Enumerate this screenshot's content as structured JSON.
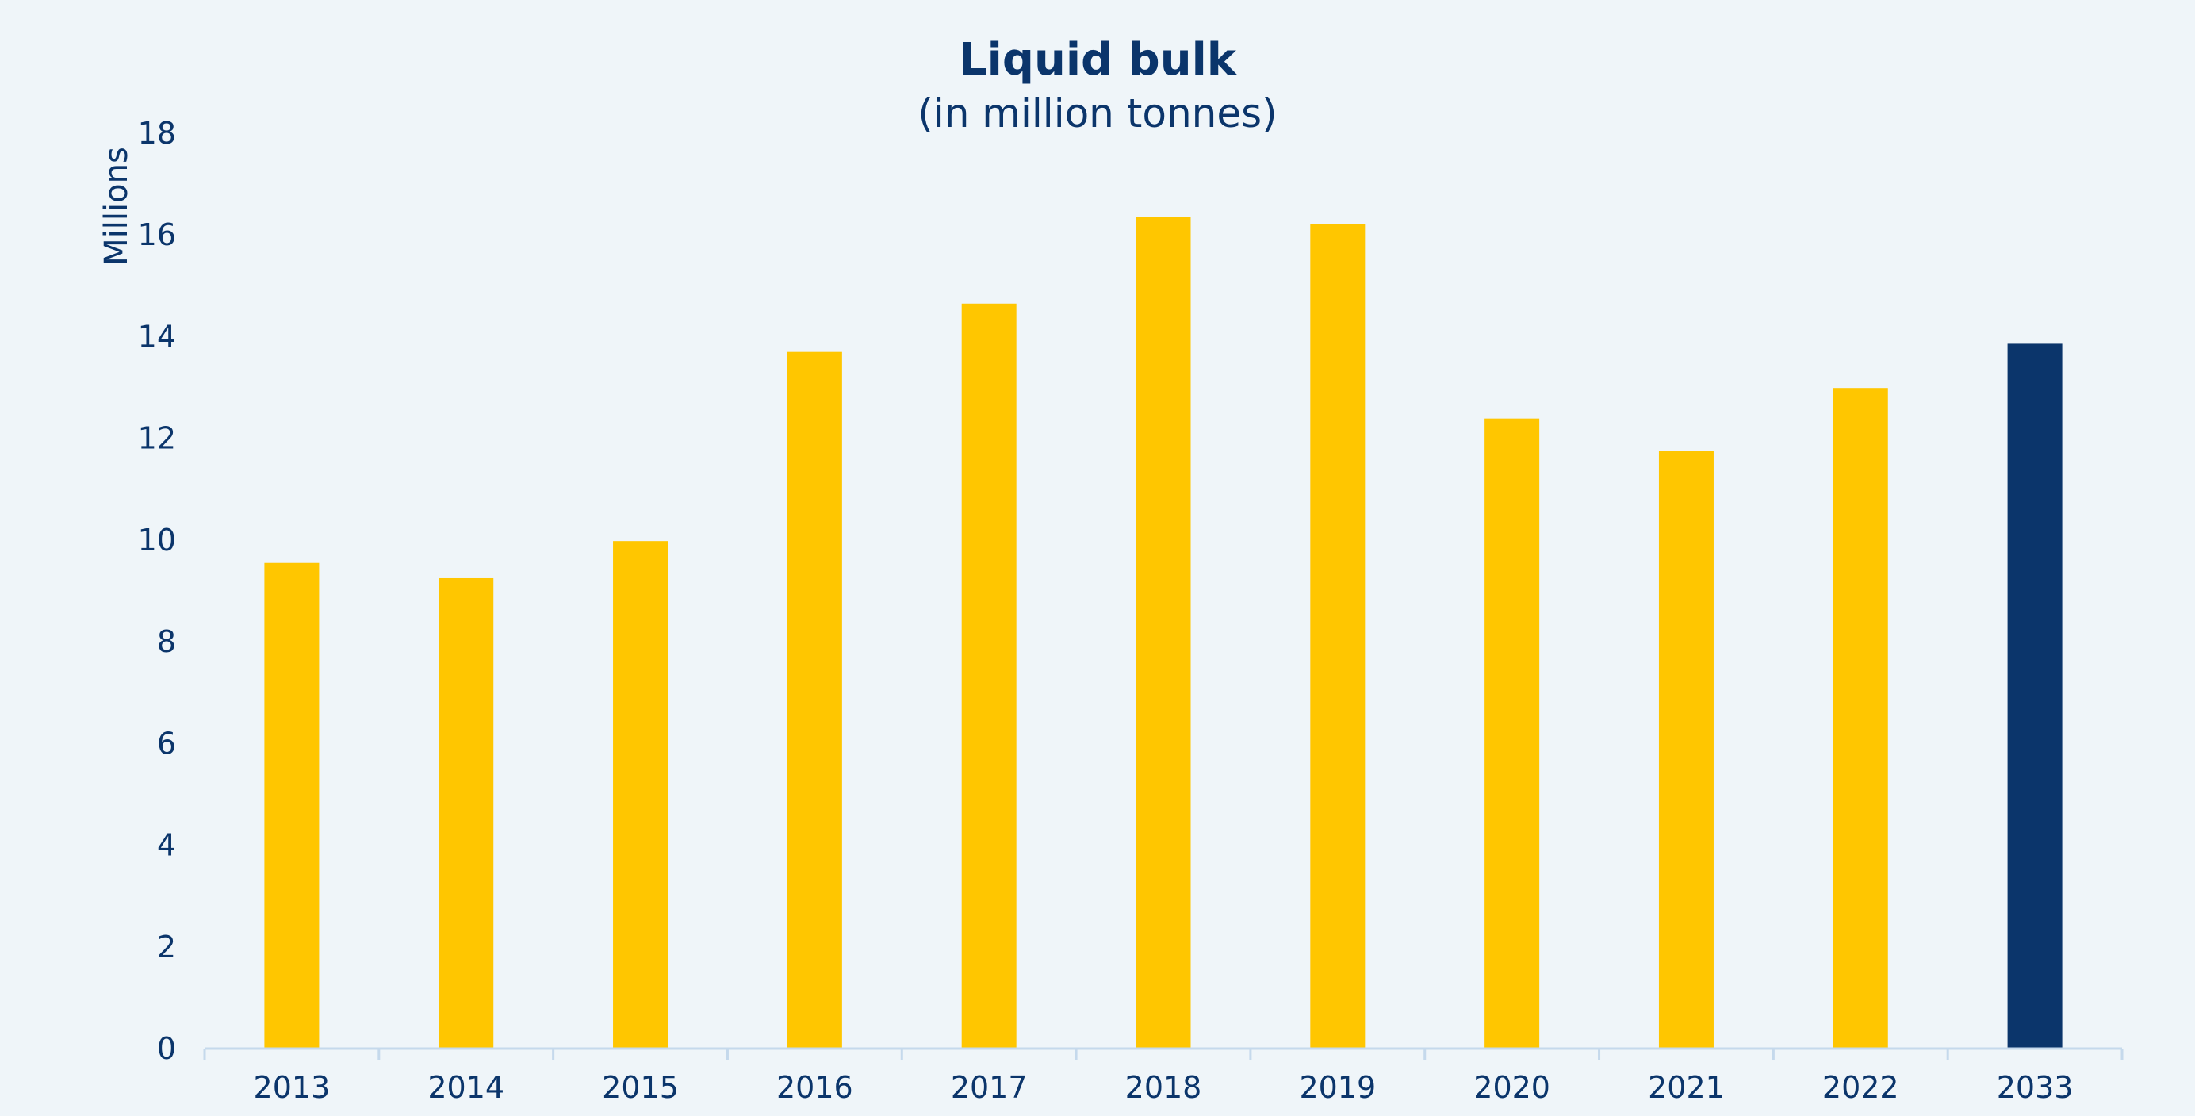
{
  "chart_data": {
    "type": "bar",
    "title": "Liquid bulk",
    "subtitle": "(in million tonnes)",
    "xlabel": "",
    "ylabel": "Millions",
    "categories": [
      "2013",
      "2014",
      "2015",
      "2016",
      "2017",
      "2018",
      "2019",
      "2020",
      "2021",
      "2022",
      "2033"
    ],
    "values": [
      9.55,
      9.25,
      9.98,
      13.7,
      14.65,
      16.36,
      16.22,
      12.39,
      11.75,
      12.99,
      13.86
    ],
    "ylim": [
      0,
      18
    ],
    "yticks": [
      0,
      2,
      4,
      6,
      8,
      10,
      12,
      14,
      16,
      18
    ],
    "grid": false,
    "legend": "none",
    "colors": {
      "default": "#ffc600",
      "highlight": "#0b356b",
      "highlight_category": "2033",
      "axis": "#c5d9ec",
      "text": "#0b356b",
      "background": "#eff5f9"
    }
  }
}
